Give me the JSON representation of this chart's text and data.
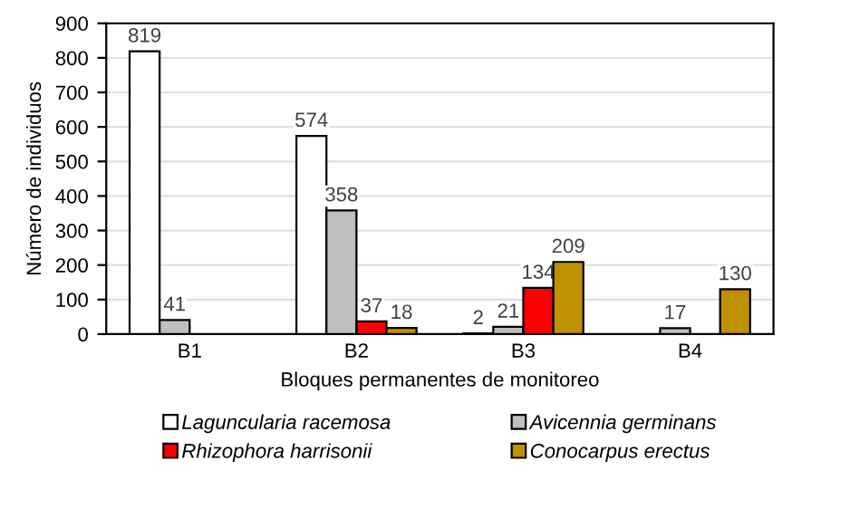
{
  "chart_data": {
    "type": "bar",
    "xlabel": "Bloques permanentes de monitoreo",
    "ylabel": "Número de individuos",
    "categories": [
      "B1",
      "B2",
      "B3",
      "B4"
    ],
    "series": [
      {
        "name": "Laguncularia racemosa",
        "color": "#ffffff",
        "values": [
          819,
          574,
          2,
          null
        ]
      },
      {
        "name": "Avicennia germinans",
        "color": "#bfbfbf",
        "values": [
          41,
          358,
          21,
          17
        ]
      },
      {
        "name": "Rhizophora harrisonii",
        "color": "#ff0000",
        "values": [
          null,
          37,
          134,
          null
        ]
      },
      {
        "name": "Conocarpus erectus",
        "color": "#bf9000",
        "values": [
          null,
          18,
          209,
          130
        ]
      }
    ],
    "ylim": [
      0,
      900
    ],
    "yticks": [
      0,
      100,
      200,
      300,
      400,
      500,
      600,
      700,
      800,
      900
    ],
    "grid": "y",
    "legend": "bottom",
    "data_labels": true
  }
}
